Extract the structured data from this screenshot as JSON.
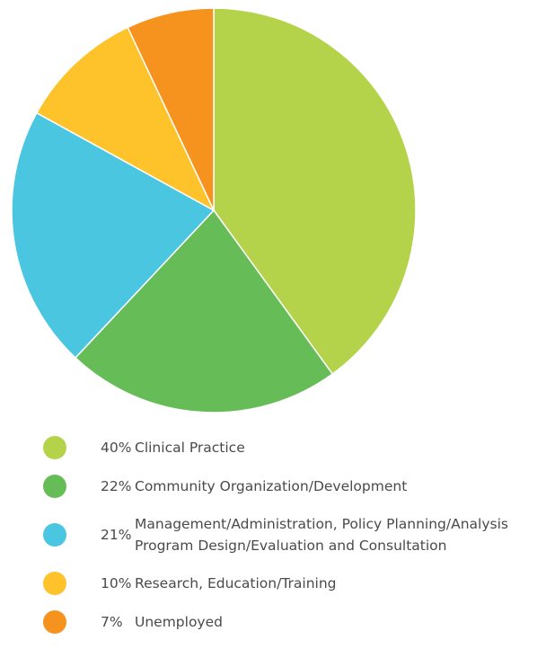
{
  "chart_data": {
    "type": "pie",
    "categories": [
      "Clinical Practice",
      "Community Organization/Development",
      "Management/Administration, Policy Planning/Analysis Program Design/Evaluation and Consultation",
      "Research, Education/Training",
      "Unemployed"
    ],
    "values": [
      40,
      22,
      21,
      10,
      7
    ],
    "value_labels": [
      "40%",
      "22%",
      "21%",
      "10%",
      "7%"
    ],
    "colors": [
      "#b5d34a",
      "#66bd57",
      "#4ac6e0",
      "#fec22b",
      "#f6921e"
    ]
  }
}
